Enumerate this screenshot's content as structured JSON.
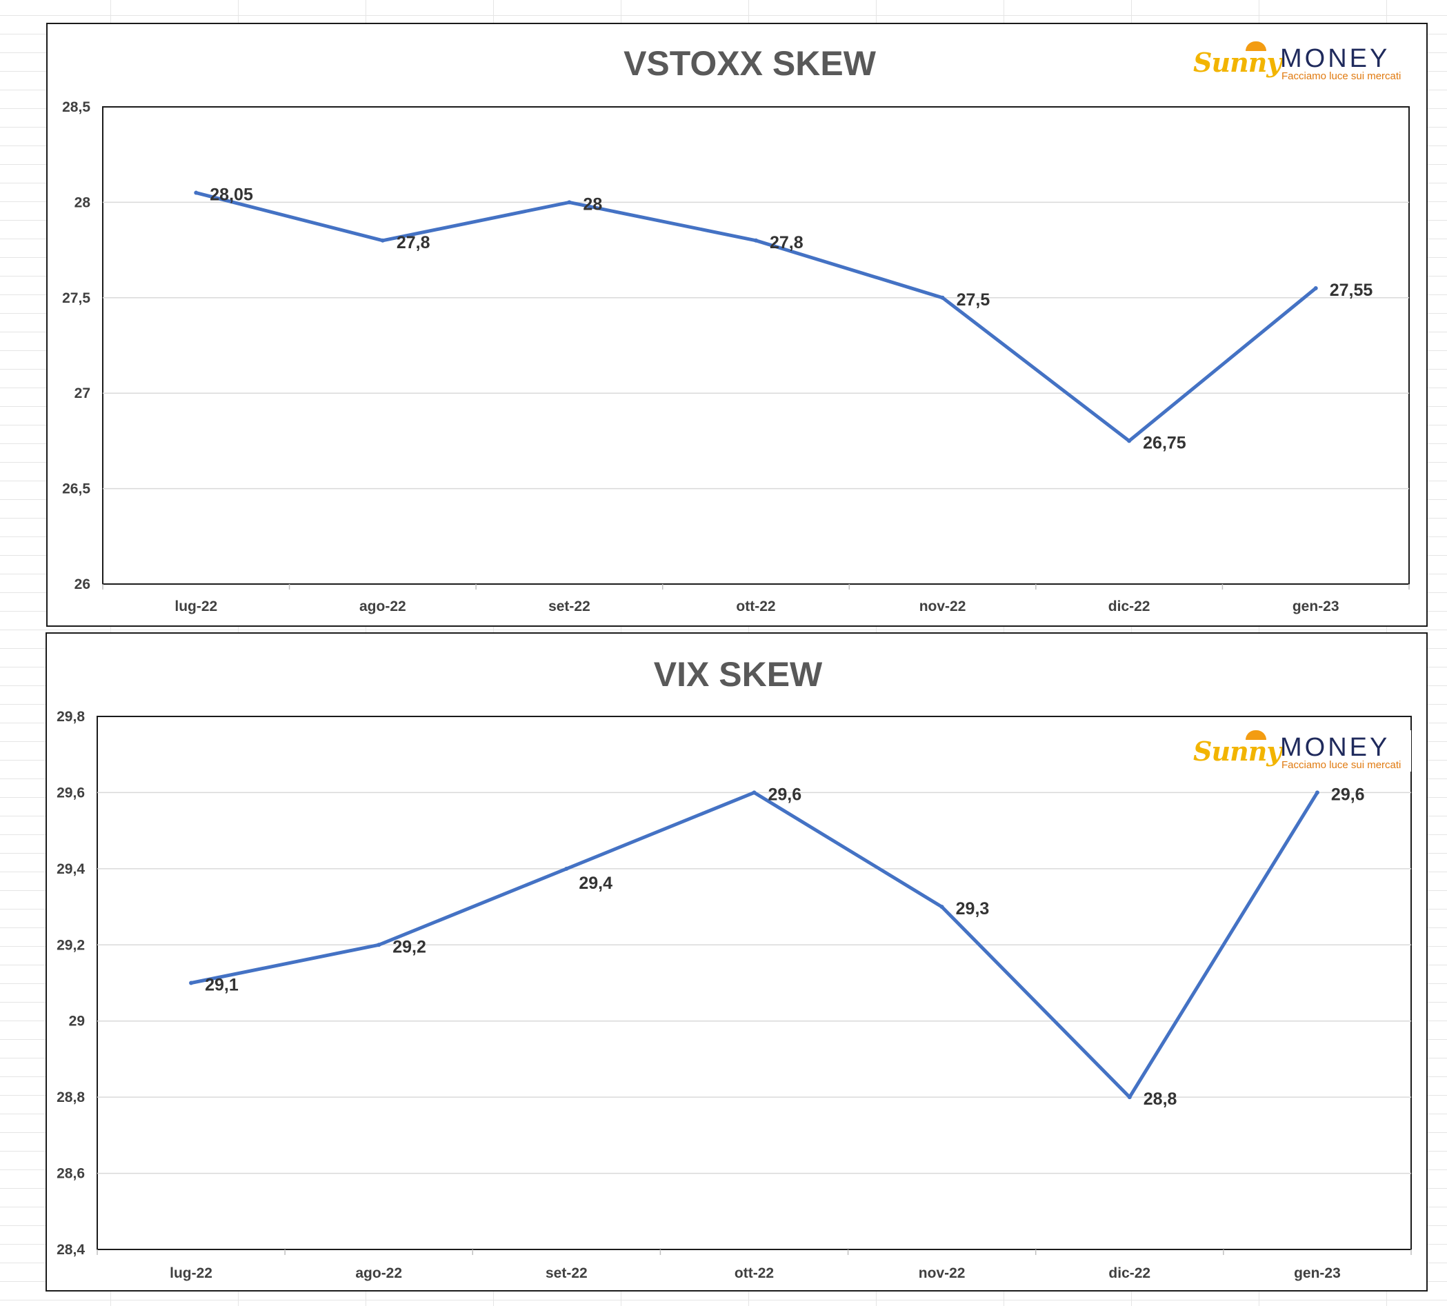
{
  "chart_data": [
    {
      "type": "line",
      "title": "VSTOXX SKEW",
      "categories": [
        "lug-22",
        "ago-22",
        "set-22",
        "ott-22",
        "nov-22",
        "dic-22",
        "gen-23"
      ],
      "series": [
        {
          "values": [
            28.05,
            27.8,
            28,
            27.8,
            27.5,
            26.75,
            27.55
          ],
          "color": "#4472c4"
        }
      ],
      "data_labels": [
        "28,05",
        "27,8",
        "28",
        "27,8",
        "27,5",
        "26,75",
        "27,55"
      ],
      "ylim": [
        26,
        28.5
      ],
      "yticks": [
        26,
        26.5,
        27,
        27.5,
        28,
        28.5
      ],
      "ytick_labels": [
        "26",
        "26,5",
        "27",
        "27,5",
        "28",
        "28,5"
      ],
      "xlabel": "",
      "ylabel": "",
      "grid": true,
      "legend": "none"
    },
    {
      "type": "line",
      "title": "VIX SKEW",
      "categories": [
        "lug-22",
        "ago-22",
        "set-22",
        "ott-22",
        "nov-22",
        "dic-22",
        "gen-23"
      ],
      "series": [
        {
          "values": [
            29.1,
            29.2,
            29.4,
            29.6,
            29.3,
            28.8,
            29.6
          ],
          "color": "#4472c4"
        }
      ],
      "data_labels": [
        "29,1",
        "29,2",
        "29,4",
        "29,6",
        "29,3",
        "28,8",
        "29,6"
      ],
      "ylim": [
        28.4,
        29.8
      ],
      "yticks": [
        28.4,
        28.6,
        28.8,
        29,
        29.2,
        29.4,
        29.6,
        29.8
      ],
      "ytick_labels": [
        "28,4",
        "28,6",
        "28,8",
        "29",
        "29,2",
        "29,4",
        "29,6",
        "29,8"
      ],
      "xlabel": "",
      "ylabel": "",
      "grid": true,
      "legend": "none"
    }
  ],
  "logo": {
    "brand_script": "Sunny",
    "brand_word": "MONEY",
    "tagline": "Facciamo luce sui mercati",
    "colors": {
      "script": "#f2b400",
      "word": "#1f2a5c",
      "tagline": "#e07a10"
    }
  }
}
